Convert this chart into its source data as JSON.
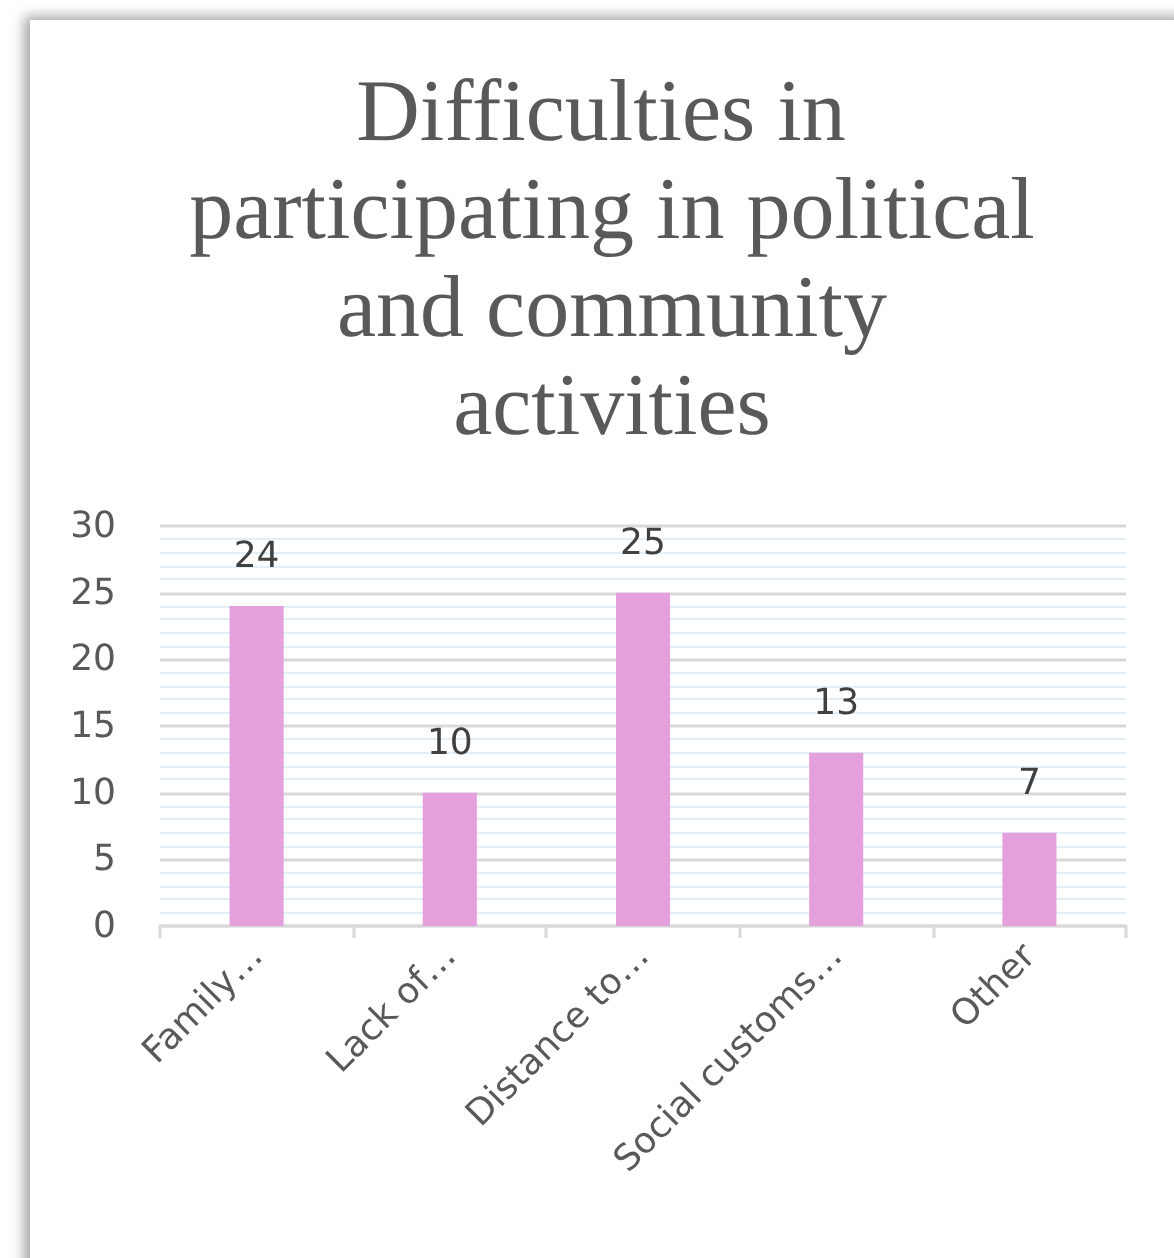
{
  "chart_data": {
    "type": "bar",
    "title": "Difficulties in participating in political and community activities",
    "categories": [
      "Family…",
      "Lack of…",
      "Distance to…",
      "Social customs…",
      "Other"
    ],
    "values": [
      24,
      10,
      25,
      13,
      7
    ],
    "color": "#e4a0dc",
    "ylim": [
      0,
      30
    ],
    "yticks": [
      0,
      5,
      10,
      15,
      20,
      25,
      30
    ],
    "grid": "y",
    "data_labels": true
  }
}
